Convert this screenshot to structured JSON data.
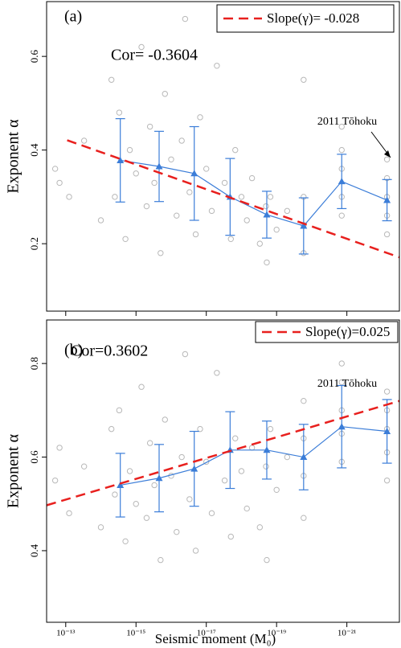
{
  "chart_data": [
    {
      "type": "scatter",
      "panel": "(a)",
      "y_label": "Exponent α",
      "cor_text": "Cor= -0.3604",
      "annotation": "2011 Tōhoku",
      "xscale": "log",
      "xlim": [
        3.5e-13,
        3.2e-23
      ],
      "xticks": [
        1e-13,
        1e-15,
        1e-17,
        1e-19,
        1e-21
      ],
      "ylim": [
        0.056,
        0.717
      ],
      "yticks": [
        0.2,
        0.4,
        0.6
      ],
      "series": [
        {
          "type": "scatter",
          "color": "#b8b8b8",
          "x": [
            2e-13,
            1.5e-13,
            8e-14,
            3e-14,
            1e-14,
            5e-15,
            4e-15,
            3e-15,
            2e-15,
            1.5e-15,
            1e-15,
            7e-16,
            5e-16,
            4e-16,
            3e-16,
            2e-16,
            1.5e-16,
            1e-16,
            7e-17,
            5e-17,
            4e-17,
            3e-17,
            2e-17,
            1.5e-17,
            1e-17,
            7e-18,
            5e-18,
            3e-18,
            2e-18,
            1.5e-18,
            1e-18,
            7e-19,
            5e-19,
            3e-19,
            2e-19,
            1.9e-19,
            1.5e-19,
            1e-19,
            5e-20,
            1.7e-20,
            1.7e-20,
            1.7e-20,
            1.7e-20,
            1.4e-21,
            1.4e-21,
            1.4e-21,
            1.4e-21,
            1.4e-21,
            7.2e-23,
            7.2e-23,
            7.2e-23,
            7.2e-23,
            7.2e-23
          ],
          "values": [
            0.36,
            0.33,
            0.3,
            0.42,
            0.25,
            0.55,
            0.3,
            0.48,
            0.21,
            0.4,
            0.35,
            0.62,
            0.28,
            0.45,
            0.33,
            0.18,
            0.52,
            0.38,
            0.26,
            0.42,
            0.68,
            0.31,
            0.22,
            0.47,
            0.36,
            0.27,
            0.58,
            0.33,
            0.21,
            0.4,
            0.3,
            0.25,
            0.34,
            0.2,
            0.28,
            0.16,
            0.3,
            0.23,
            0.27,
            0.18,
            0.24,
            0.3,
            0.55,
            0.26,
            0.3,
            0.36,
            0.4,
            0.45,
            0.22,
            0.26,
            0.3,
            0.34,
            0.38
          ]
        },
        {
          "type": "line",
          "color": "#3b7dd8",
          "x": [
            2.8e-15,
            2.2e-16,
            2.2e-17,
            2.1e-18,
            1.9e-19,
            1.7e-20,
            1.4e-21,
            7.2e-23
          ],
          "values": [
            0.378,
            0.365,
            0.35,
            0.3,
            0.262,
            0.238,
            0.333,
            0.293
          ],
          "errors": [
            0.089,
            0.075,
            0.1,
            0.082,
            0.05,
            0.06,
            0.058,
            0.044
          ]
        },
        {
          "type": "line",
          "name": "Slope(γ)= -0.028",
          "color": "#e8201e",
          "dashed": true,
          "x": [
            9.1e-14,
            3.2e-23
          ],
          "values": [
            0.421,
            0.171
          ]
        }
      ]
    },
    {
      "type": "scatter",
      "panel": "(b)",
      "y_label": "Exponent α",
      "x_label": "Seismic moment (M₀)",
      "cor_text": "Cor=0.3602",
      "annotation": "2011 Tōhoku",
      "xscale": "log",
      "xlim": [
        3.5e-13,
        3.2e-23
      ],
      "xticks": [
        {
          "value": 1e-13,
          "label": "10⁻¹³"
        },
        {
          "value": 1e-15,
          "label": "10⁻¹⁵"
        },
        {
          "value": 1e-17,
          "label": "10⁻¹⁷"
        },
        {
          "value": 1e-19,
          "label": "10⁻¹⁹"
        },
        {
          "value": 1e-21,
          "label": "10⁻²¹"
        }
      ],
      "ylim": [
        0.247,
        0.893
      ],
      "yticks": [
        0.4,
        0.6,
        0.8
      ],
      "series": [
        {
          "type": "scatter",
          "color": "#b8b8b8",
          "x": [
            2e-13,
            1.5e-13,
            8e-14,
            3e-14,
            1e-14,
            5e-15,
            4e-15,
            3e-15,
            2e-15,
            1.5e-15,
            1e-15,
            7e-16,
            5e-16,
            4e-16,
            3e-16,
            2e-16,
            1.5e-16,
            1e-16,
            7e-17,
            5e-17,
            4e-17,
            3e-17,
            2e-17,
            1.5e-17,
            1e-17,
            7e-18,
            5e-18,
            3e-18,
            2e-18,
            1.5e-18,
            1e-18,
            7e-19,
            5e-19,
            3e-19,
            2e-19,
            1.9e-19,
            1.5e-19,
            1e-19,
            5e-20,
            1.7e-20,
            1.7e-20,
            1.7e-20,
            1.7e-20,
            1.4e-21,
            1.4e-21,
            1.4e-21,
            1.4e-21,
            1.4e-21,
            7.2e-23,
            7.2e-23,
            7.2e-23,
            7.2e-23,
            7.2e-23
          ],
          "values": [
            0.55,
            0.62,
            0.48,
            0.58,
            0.45,
            0.66,
            0.52,
            0.7,
            0.42,
            0.57,
            0.5,
            0.75,
            0.47,
            0.63,
            0.54,
            0.38,
            0.68,
            0.56,
            0.44,
            0.6,
            0.82,
            0.51,
            0.4,
            0.66,
            0.59,
            0.48,
            0.78,
            0.55,
            0.43,
            0.64,
            0.57,
            0.49,
            0.62,
            0.45,
            0.58,
            0.38,
            0.66,
            0.53,
            0.6,
            0.47,
            0.56,
            0.64,
            0.72,
            0.59,
            0.65,
            0.7,
            0.76,
            0.8,
            0.55,
            0.61,
            0.66,
            0.7,
            0.74
          ]
        },
        {
          "type": "line",
          "color": "#3b7dd8",
          "x": [
            2.8e-15,
            2.2e-16,
            2.2e-17,
            2.1e-18,
            1.9e-19,
            1.7e-20,
            1.4e-21,
            7.2e-23
          ],
          "values": [
            0.54,
            0.555,
            0.575,
            0.615,
            0.615,
            0.6,
            0.665,
            0.655
          ],
          "errors": [
            0.068,
            0.072,
            0.08,
            0.082,
            0.062,
            0.07,
            0.088,
            0.068
          ]
        },
        {
          "type": "line",
          "name": "Slope(γ)=0.025",
          "color": "#e8201e",
          "dashed": true,
          "x": [
            3.5e-13,
            3.2e-23
          ],
          "values": [
            0.497,
            0.72
          ]
        }
      ]
    }
  ]
}
